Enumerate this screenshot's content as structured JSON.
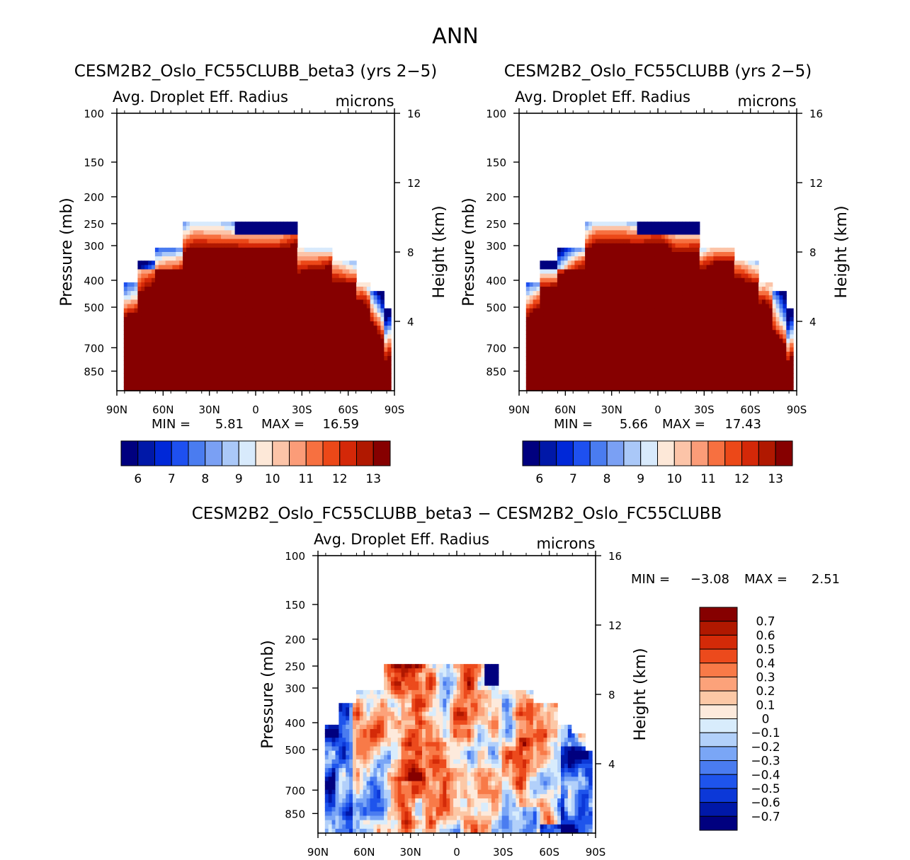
{
  "figure": {
    "title": "ANN"
  },
  "colors": {
    "abs_levels": [
      "#00007f",
      "#0018a8",
      "#0028d8",
      "#1e50f0",
      "#4a7cf0",
      "#7aa0f4",
      "#aac8f8",
      "#d8eafc",
      "#fde8d8",
      "#fcc4a8",
      "#fb9c78",
      "#f77040",
      "#ec4818",
      "#d42808",
      "#b01800",
      "#860000"
    ],
    "diff_levels": [
      "#00007f",
      "#0018a8",
      "#0c38d8",
      "#1e54ec",
      "#4a7cf0",
      "#7aa6f6",
      "#b2d0fa",
      "#d8ecfc",
      "#fdeadc",
      "#fcc8a6",
      "#fca27a",
      "#f87a48",
      "#ec4a1c",
      "#d42a08",
      "#b01800",
      "#860000"
    ]
  },
  "chart_data": [
    {
      "type": "heatmap",
      "title": "CESM2B2_Oslo_FC55CLUBB_beta3 (yrs 2−5)",
      "subtitle_left": "Avg. Droplet Eff. Radius",
      "subtitle_right": "microns",
      "ylabel": "Pressure (mb)",
      "y2label": "Height (km)",
      "x_ticks": [
        "90N",
        "60N",
        "30N",
        "0",
        "30S",
        "60S",
        "90S"
      ],
      "y_ticks": [
        "100",
        "150",
        "200",
        "250",
        "300",
        "400",
        "500",
        "700",
        "850"
      ],
      "y_tick_values": [
        100,
        150,
        200,
        250,
        300,
        400,
        500,
        700,
        850
      ],
      "ylim": [
        100,
        1000
      ],
      "y2_ticks": [
        "16",
        "12",
        "8",
        "4"
      ],
      "y2_tick_values": [
        16,
        12,
        8,
        4
      ],
      "min_label": "MIN =",
      "min_value": "5.81",
      "max_label": "MAX =",
      "max_value": "16.59",
      "colorbar_labels": [
        "6",
        "7",
        "8",
        "9",
        "10",
        "11",
        "12",
        "13"
      ],
      "colorbar_levels": [
        5.5,
        6,
        6.5,
        7,
        7.5,
        8,
        8.5,
        9,
        9.5,
        10,
        10.5,
        11,
        11.5,
        12,
        12.5,
        13,
        13.5
      ]
    },
    {
      "type": "heatmap",
      "title": "CESM2B2_Oslo_FC55CLUBB (yrs 2−5)",
      "subtitle_left": "Avg. Droplet Eff. Radius",
      "subtitle_right": "microns",
      "ylabel": "Pressure (mb)",
      "y2label": "Height (km)",
      "x_ticks": [
        "90N",
        "60N",
        "30N",
        "0",
        "30S",
        "60S",
        "90S"
      ],
      "y_ticks": [
        "100",
        "150",
        "200",
        "250",
        "300",
        "400",
        "500",
        "700",
        "850"
      ],
      "y_tick_values": [
        100,
        150,
        200,
        250,
        300,
        400,
        500,
        700,
        850
      ],
      "ylim": [
        100,
        1000
      ],
      "y2_ticks": [
        "16",
        "12",
        "8",
        "4"
      ],
      "y2_tick_values": [
        16,
        12,
        8,
        4
      ],
      "min_label": "MIN =",
      "min_value": "5.66",
      "max_label": "MAX =",
      "max_value": "17.43",
      "colorbar_labels": [
        "6",
        "7",
        "8",
        "9",
        "10",
        "11",
        "12",
        "13"
      ],
      "colorbar_levels": [
        5.5,
        6,
        6.5,
        7,
        7.5,
        8,
        8.5,
        9,
        9.5,
        10,
        10.5,
        11,
        11.5,
        12,
        12.5,
        13,
        13.5
      ]
    },
    {
      "type": "heatmap",
      "title": "CESM2B2_Oslo_FC55CLUBB_beta3 − CESM2B2_Oslo_FC55CLUBB",
      "subtitle_left": "Avg. Droplet Eff. Radius",
      "subtitle_right": "microns",
      "ylabel": "Pressure (mb)",
      "y2label": "Height (km)",
      "x_ticks": [
        "90N",
        "60N",
        "30N",
        "0",
        "30S",
        "60S",
        "90S"
      ],
      "y_ticks": [
        "100",
        "150",
        "200",
        "250",
        "300",
        "400",
        "500",
        "700",
        "850"
      ],
      "y_tick_values": [
        100,
        150,
        200,
        250,
        300,
        400,
        500,
        700,
        850
      ],
      "ylim": [
        100,
        1000
      ],
      "y2_ticks": [
        "16",
        "12",
        "8",
        "4"
      ],
      "y2_tick_values": [
        16,
        12,
        8,
        4
      ],
      "min_label": "MIN =",
      "min_value": "−3.08",
      "max_label": "MAX =",
      "max_value": "2.51",
      "colorbar_labels": [
        "0.7",
        "0.6",
        "0.5",
        "0.4",
        "0.3",
        "0.2",
        "0.1",
        "0",
        "−0.1",
        "−0.2",
        "−0.3",
        "−0.4",
        "−0.5",
        "−0.6",
        "−0.7"
      ],
      "colorbar_levels": [
        0.7,
        0.6,
        0.5,
        0.4,
        0.3,
        0.2,
        0.1,
        0,
        -0.1,
        -0.2,
        -0.3,
        -0.4,
        -0.5,
        -0.6,
        -0.7
      ]
    }
  ]
}
